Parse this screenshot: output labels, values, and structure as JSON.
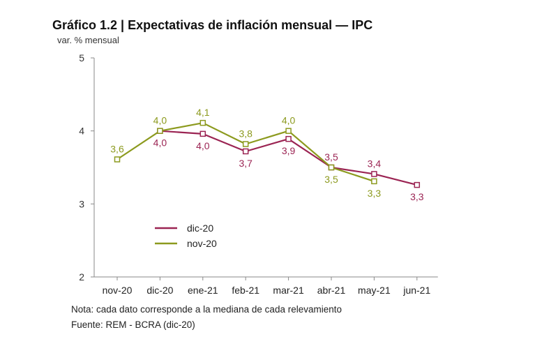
{
  "chart_data": {
    "type": "line",
    "title": "Gráfico 1.2 | Expectativas de inflación mensual — IPC",
    "ylabel": "var. % mensual",
    "xlabel": "",
    "categories": [
      "nov-20",
      "dic-20",
      "ene-21",
      "feb-21",
      "mar-21",
      "abr-21",
      "may-21",
      "jun-21"
    ],
    "ylim": [
      2,
      5
    ],
    "yticks": [
      2,
      3,
      4,
      5
    ],
    "grid": false,
    "legend_position": "center-left",
    "series": [
      {
        "name": "dic-20",
        "color": "#9b2453",
        "values": [
          null,
          4.0,
          3.96,
          3.72,
          3.89,
          3.5,
          3.41,
          3.26
        ],
        "labels": [
          null,
          "4,0",
          "4,0",
          "3,7",
          "3,9",
          "3,5",
          "3,4",
          "3,3"
        ],
        "label_side": [
          null,
          "below",
          "below",
          "below",
          "below",
          "above",
          "above",
          "below"
        ]
      },
      {
        "name": "nov-20",
        "color": "#8c9a1e",
        "values": [
          3.61,
          4.0,
          4.11,
          3.82,
          4.0,
          3.5,
          3.31,
          null
        ],
        "labels": [
          "3,6",
          "4,0",
          "4,1",
          "3,8",
          "4,0",
          "3,5",
          "3,3",
          null
        ],
        "label_side": [
          "above",
          "above",
          "above",
          "above",
          "above",
          "below",
          "below",
          null
        ]
      }
    ],
    "notes": [
      "Nota: cada dato corresponde a la mediana de cada relevamiento",
      "Fuente: REM - BCRA (dic-20)"
    ]
  }
}
